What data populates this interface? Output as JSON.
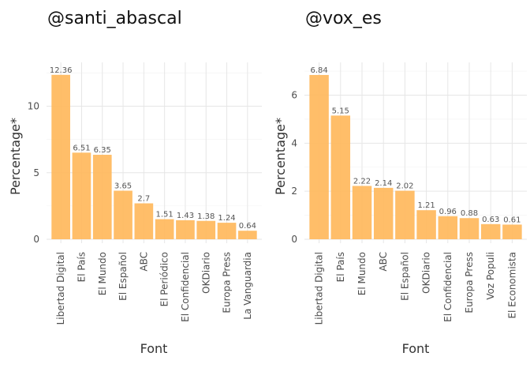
{
  "chart_data": [
    {
      "type": "bar",
      "title": "@santi_abascal",
      "xlabel": "Font",
      "ylabel": "Percentage*",
      "categories": [
        "Libertad Digital",
        "El País",
        "El Mundo",
        "El Español",
        "ABC",
        "El Periódico",
        "El Confidencial",
        "OKDiario",
        "Europa Press",
        "La Vanguardia"
      ],
      "values": [
        12.36,
        6.51,
        6.35,
        3.65,
        2.7,
        1.51,
        1.43,
        1.38,
        1.24,
        0.64
      ],
      "value_labels": [
        "12.36",
        "6.51",
        "6.35",
        "3.65",
        "2.7",
        "1.51",
        "1.43",
        "1.38",
        "1.24",
        "0.64"
      ],
      "yticks": [
        0,
        5,
        10
      ],
      "ylim": [
        0,
        13
      ],
      "grid": true,
      "bar_color": "#FFB85C"
    },
    {
      "type": "bar",
      "title": "@vox_es",
      "xlabel": "Font",
      "ylabel": "Percentage*",
      "categories": [
        "Libertad Digital",
        "El País",
        "El Mundo",
        "ABC",
        "El Español",
        "OKDiario",
        "El Confidencial",
        "Europa Press",
        "Voz Populi",
        "El Economista"
      ],
      "values": [
        6.84,
        5.15,
        2.22,
        2.14,
        2.02,
        1.21,
        0.96,
        0.88,
        0.63,
        0.61
      ],
      "value_labels": [
        "6.84",
        "5.15",
        "2.22",
        "2.14",
        "2.02",
        "1.21",
        "0.96",
        "0.88",
        "0.63",
        "0.61"
      ],
      "yticks": [
        0,
        2,
        4,
        6
      ],
      "ylim": [
        0,
        7.2
      ],
      "grid": true,
      "bar_color": "#FFB85C"
    }
  ]
}
